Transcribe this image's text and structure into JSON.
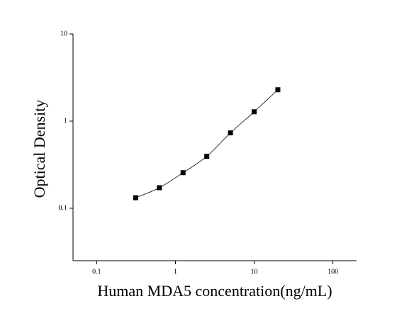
{
  "chart_data": {
    "type": "scatter",
    "x_label": "Human MDA5 concentration(ng/mL)",
    "y_label": "Optical Density",
    "x": [
      0.3125,
      0.625,
      1.25,
      2.5,
      5,
      10,
      20
    ],
    "series": [
      {
        "color": "#000000",
        "values": [
          0.132,
          0.172,
          0.256,
          0.394,
          0.733,
          1.28,
          2.29
        ]
      }
    ],
    "xlim": [
      0.05,
      200
    ],
    "ylim": [
      0.025,
      10
    ],
    "xticks": [
      0.1,
      1,
      10,
      100
    ],
    "yticks": [
      0.1,
      1,
      10
    ],
    "xscale": "log",
    "yscale": "log",
    "fit_line": true
  }
}
